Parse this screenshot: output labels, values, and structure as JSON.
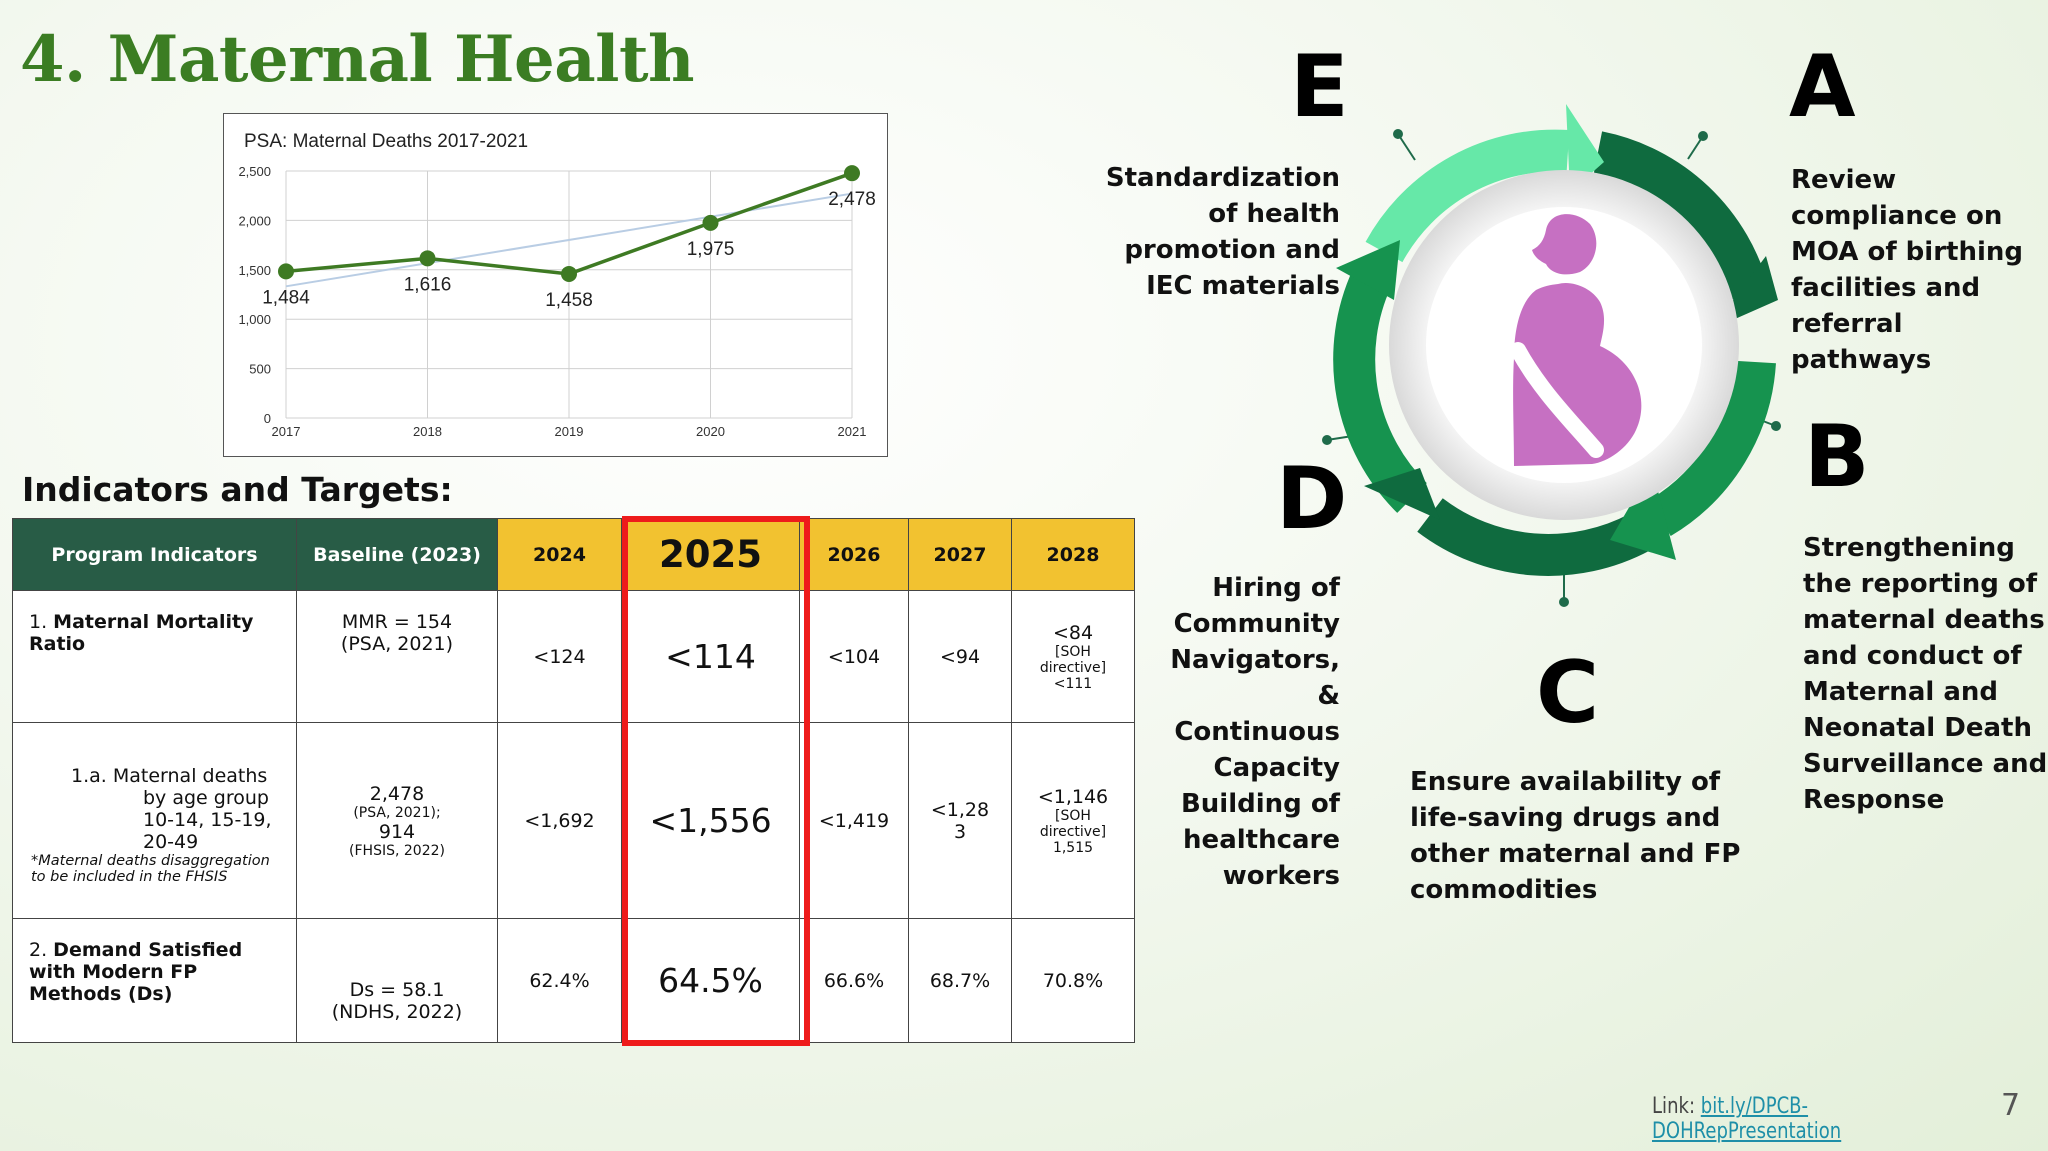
{
  "title": "4. Maternal Health",
  "chart_data": {
    "type": "line",
    "title": "PSA: Maternal Deaths 2017-2021",
    "categories": [
      "2017",
      "2018",
      "2019",
      "2020",
      "2021"
    ],
    "series": [
      {
        "values": [
          1484,
          1616,
          1458,
          1975,
          2478
        ],
        "color": "#3e7a23"
      }
    ],
    "value_labels": [
      "1,484",
      "1,616",
      "1,458",
      "1,975",
      "2,478"
    ],
    "trendline": true,
    "trendline_color": "#b9cde4",
    "ylim": [
      0,
      2500
    ],
    "yticks": [
      0,
      500,
      1000,
      1500,
      2000,
      2500
    ],
    "ytick_labels": [
      "0",
      "500",
      "1,000",
      "1,500",
      "2,000",
      "2,500"
    ],
    "grid": true
  },
  "indicators_heading": "Indicators and Targets:",
  "table": {
    "headers": [
      "Program Indicators",
      "Baseline (2023)",
      "2024",
      "2025",
      "2026",
      "2027",
      "2028"
    ],
    "rows": [
      {
        "prog_num": "1. ",
        "prog_bold": "Maternal Mortality Ratio",
        "baseline_1": "MMR = 154",
        "baseline_2": "(PSA, 2021)",
        "y2024": "<124",
        "y2025": "<114",
        "y2026": "<104",
        "y2027": "<94",
        "y2028_1": "<84",
        "y2028_2": "[SOH directive]",
        "y2028_3": "<111"
      },
      {
        "prog_lines": [
          "1.a. Maternal deaths",
          "by age group",
          "10-14, 15-19,",
          "20-49"
        ],
        "prog_note": "*Maternal deaths disaggregation to be included in the FHSIS",
        "baseline_1": "2,478",
        "baseline_2": "(PSA, 2021);",
        "baseline_3": "914",
        "baseline_4": "(FHSIS, 2022)",
        "y2024": "<1,692",
        "y2025": "<1,556",
        "y2026": "<1,419",
        "y2027_1": "<1,28",
        "y2027_2": "3",
        "y2028_1": "<1,146",
        "y2028_2": "[SOH directive]",
        "y2028_3": "1,515"
      },
      {
        "prog_num": "2. ",
        "prog_bold": "Demand Satisfied with Modern FP Methods (Ds)",
        "baseline_1": "Ds = 58.1",
        "baseline_2": "(NDHS, 2022)",
        "y2024": "62.4%",
        "y2025": "64.5%",
        "y2026": "66.6%",
        "y2027": "68.7%",
        "y2028": "70.8%"
      }
    ]
  },
  "cycle": {
    "colors": {
      "dark": "#0f6b3f",
      "mid": "#16934f",
      "light": "#66e8a8",
      "figure": "#c670c2"
    },
    "steps": [
      {
        "letter": "A",
        "text": [
          "Review",
          "compliance on",
          "MOA of birthing",
          "facilities and",
          "referral pathways"
        ]
      },
      {
        "letter": "B",
        "text": [
          "Strengthening",
          "the reporting of",
          "maternal deaths",
          "and conduct of",
          "Maternal and",
          "Neonatal Death",
          "Surveillance and",
          "Response"
        ]
      },
      {
        "letter": "C",
        "text": [
          "Ensure availability of",
          "life-saving drugs and",
          "other maternal and FP",
          "commodities"
        ]
      },
      {
        "letter": "D",
        "text": [
          "Hiring of",
          "Community",
          "Navigators, &",
          "Continuous",
          "Capacity",
          "Building of",
          "healthcare",
          "workers"
        ]
      },
      {
        "letter": "E",
        "text": [
          "Standardization",
          "of health",
          "promotion and",
          "IEC materials"
        ]
      }
    ]
  },
  "footer": {
    "link_label": "Link: ",
    "link_text": "bit.ly/DPCB-DOHRepPresentation",
    "page": "7"
  }
}
